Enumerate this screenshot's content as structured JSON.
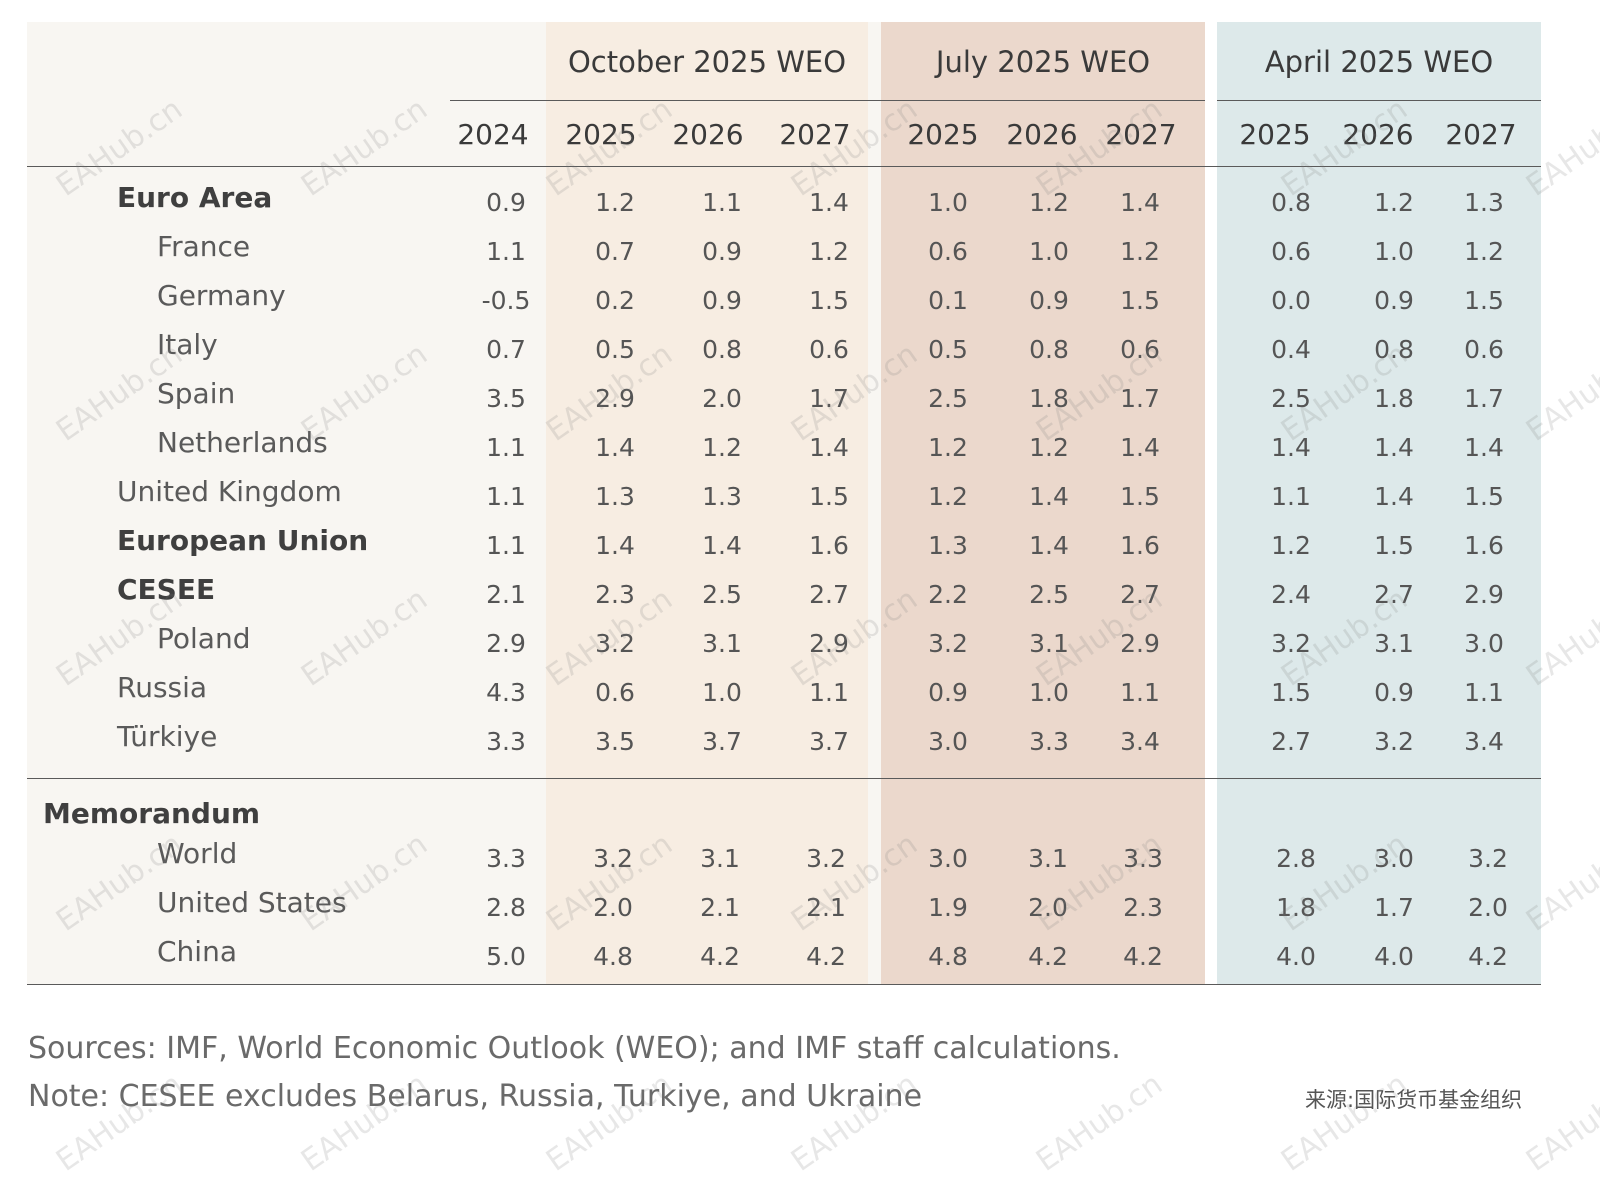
{
  "table": {
    "groups": [
      "October 2025 WEO",
      "July 2025 WEO",
      "April 2025 WEO"
    ],
    "year_2024": "2024",
    "group_years": [
      [
        "2025",
        "2026",
        "2027"
      ],
      [
        "2025",
        "2026",
        "2027"
      ],
      [
        "2025",
        "2026",
        "2027"
      ]
    ],
    "rows": [
      {
        "label": "Euro Area",
        "bold": true,
        "indent": 1,
        "values": [
          "0.9",
          "1.2",
          "1.1",
          "1.4",
          "1.0",
          "1.2",
          "1.4",
          "0.8",
          "1.2",
          "1.3"
        ]
      },
      {
        "label": "France",
        "bold": false,
        "indent": 2,
        "values": [
          "1.1",
          "0.7",
          "0.9",
          "1.2",
          "0.6",
          "1.0",
          "1.2",
          "0.6",
          "1.0",
          "1.2"
        ]
      },
      {
        "label": "Germany",
        "bold": false,
        "indent": 2,
        "values": [
          "-0.5",
          "0.2",
          "0.9",
          "1.5",
          "0.1",
          "0.9",
          "1.5",
          "0.0",
          "0.9",
          "1.5"
        ]
      },
      {
        "label": "Italy",
        "bold": false,
        "indent": 2,
        "values": [
          "0.7",
          "0.5",
          "0.8",
          "0.6",
          "0.5",
          "0.8",
          "0.6",
          "0.4",
          "0.8",
          "0.6"
        ]
      },
      {
        "label": "Spain",
        "bold": false,
        "indent": 2,
        "values": [
          "3.5",
          "2.9",
          "2.0",
          "1.7",
          "2.5",
          "1.8",
          "1.7",
          "2.5",
          "1.8",
          "1.7"
        ]
      },
      {
        "label": "Netherlands",
        "bold": false,
        "indent": 2,
        "values": [
          "1.1",
          "1.4",
          "1.2",
          "1.4",
          "1.2",
          "1.2",
          "1.4",
          "1.4",
          "1.4",
          "1.4"
        ]
      },
      {
        "label": "United Kingdom",
        "bold": false,
        "indent": 1,
        "values": [
          "1.1",
          "1.3",
          "1.3",
          "1.5",
          "1.2",
          "1.4",
          "1.5",
          "1.1",
          "1.4",
          "1.5"
        ]
      },
      {
        "label": "European Union",
        "bold": true,
        "indent": 1,
        "values": [
          "1.1",
          "1.4",
          "1.4",
          "1.6",
          "1.3",
          "1.4",
          "1.6",
          "1.2",
          "1.5",
          "1.6"
        ]
      },
      {
        "label": "CESEE",
        "bold": true,
        "indent": 1,
        "values": [
          "2.1",
          "2.3",
          "2.5",
          "2.7",
          "2.2",
          "2.5",
          "2.7",
          "2.4",
          "2.7",
          "2.9"
        ]
      },
      {
        "label": "Poland",
        "bold": false,
        "indent": 2,
        "values": [
          "2.9",
          "3.2",
          "3.1",
          "2.9",
          "3.2",
          "3.1",
          "2.9",
          "3.2",
          "3.1",
          "3.0"
        ]
      },
      {
        "label": "Russia",
        "bold": false,
        "indent": 1,
        "values": [
          "4.3",
          "0.6",
          "1.0",
          "1.1",
          "0.9",
          "1.0",
          "1.1",
          "1.5",
          "0.9",
          "1.1"
        ]
      },
      {
        "label": "Türkiye",
        "bold": false,
        "indent": 1,
        "values": [
          "3.3",
          "3.5",
          "3.7",
          "3.7",
          "3.0",
          "3.3",
          "3.4",
          "2.7",
          "3.2",
          "3.4"
        ]
      }
    ],
    "memo_label": "Memorandum",
    "memo_rows": [
      {
        "label": "World",
        "values": [
          "3.3",
          "3.2",
          "3.1",
          "3.2",
          "3.0",
          "3.1",
          "3.3",
          "2.8",
          "3.0",
          "3.2"
        ]
      },
      {
        "label": "United States",
        "values": [
          "2.8",
          "2.0",
          "2.1",
          "2.1",
          "1.9",
          "2.0",
          "2.3",
          "1.8",
          "1.7",
          "2.0"
        ]
      },
      {
        "label": "China",
        "values": [
          "5.0",
          "4.8",
          "4.2",
          "4.2",
          "4.8",
          "4.2",
          "4.2",
          "4.0",
          "4.0",
          "4.2"
        ]
      }
    ],
    "colors": {
      "base": "#f8f6f2",
      "october": "#f7ede2",
      "july": "#ebd8cc",
      "april": "#dde9ea",
      "rule": "#5a5a5a"
    }
  },
  "footer": {
    "sources": "Sources: IMF, World Economic Outlook (WEO); and IMF staff calculations.",
    "note": "Note: CESEE excludes Belarus, Russia, Turkiye, and Ukraine",
    "source_cn": "来源:国际货币基金组织"
  },
  "watermark": "EAHub.cn"
}
